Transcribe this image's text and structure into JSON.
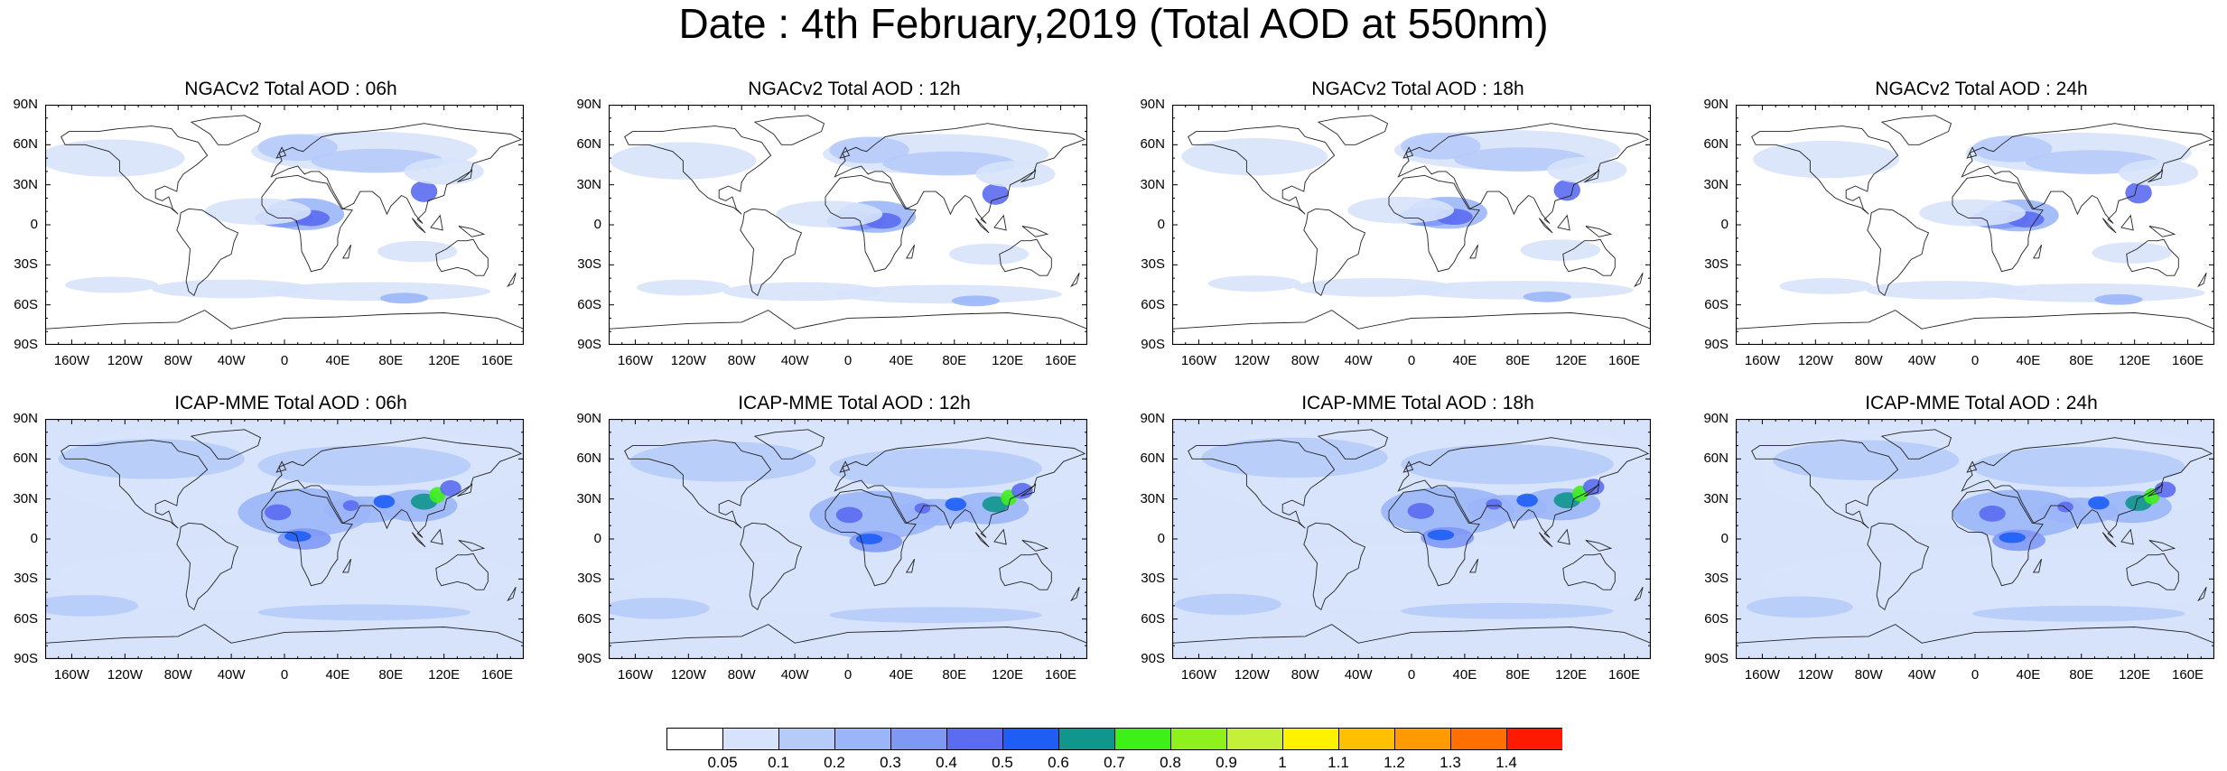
{
  "title": "Date : 4th February,2019 (Total AOD at 550nm)",
  "panels": [
    {
      "id": "ngac-06",
      "model": "NGACv2",
      "label": "NGACv2 Total AOD : 06h",
      "row": 0,
      "col": 0,
      "lead": "06h"
    },
    {
      "id": "ngac-12",
      "model": "NGACv2",
      "label": "NGACv2 Total AOD : 12h",
      "row": 0,
      "col": 1,
      "lead": "12h"
    },
    {
      "id": "ngac-18",
      "model": "NGACv2",
      "label": "NGACv2 Total AOD : 18h",
      "row": 0,
      "col": 2,
      "lead": "18h"
    },
    {
      "id": "ngac-24",
      "model": "NGACv2",
      "label": "NGACv2 Total AOD : 24h",
      "row": 0,
      "col": 3,
      "lead": "24h"
    },
    {
      "id": "icap-06",
      "model": "ICAP-MME",
      "label": "ICAP-MME Total AOD : 06h",
      "row": 1,
      "col": 0,
      "lead": "06h"
    },
    {
      "id": "icap-12",
      "model": "ICAP-MME",
      "label": "ICAP-MME Total AOD : 12h",
      "row": 1,
      "col": 1,
      "lead": "12h"
    },
    {
      "id": "icap-18",
      "model": "ICAP-MME",
      "label": "ICAP-MME Total AOD : 18h",
      "row": 1,
      "col": 2,
      "lead": "18h"
    },
    {
      "id": "icap-24",
      "model": "ICAP-MME",
      "label": "ICAP-MME Total AOD : 24h",
      "row": 1,
      "col": 3,
      "lead": "24h"
    }
  ],
  "lat_labels": [
    "90N",
    "60N",
    "30N",
    "0",
    "30S",
    "60S",
    "90S"
  ],
  "lon_labels": [
    "160W",
    "120W",
    "80W",
    "40W",
    "0",
    "40E",
    "80E",
    "120E",
    "160E"
  ],
  "lat_values": [
    90,
    60,
    30,
    0,
    -30,
    -60,
    -90
  ],
  "lon_values": [
    -160,
    -120,
    -80,
    -40,
    0,
    40,
    80,
    120,
    160
  ],
  "colorbar": {
    "labels": [
      "0.05",
      "0.1",
      "0.2",
      "0.3",
      "0.4",
      "0.5",
      "0.6",
      "0.7",
      "0.8",
      "0.9",
      "1",
      "1.1",
      "1.2",
      "1.3",
      "1.4"
    ],
    "colors": [
      "#ffffff",
      "#d7e3fb",
      "#b7cbf9",
      "#9bb6f8",
      "#7f98f4",
      "#5b6cf0",
      "#1e5ef5",
      "#10968c",
      "#3ef01a",
      "#8ef01c",
      "#c4f03a",
      "#fff200",
      "#ffc000",
      "#ff9a00",
      "#ff7000",
      "#ff1a00"
    ]
  },
  "chart_data": {
    "type": "heatmap",
    "variable": "Total AOD at 550nm",
    "date": "4th February,2019",
    "models": [
      "NGACv2",
      "ICAP-MME"
    ],
    "lead_times": [
      "06h",
      "12h",
      "18h",
      "24h"
    ],
    "xlim": [
      -180,
      180
    ],
    "ylim": [
      -90,
      90
    ],
    "levels": [
      0.05,
      0.1,
      0.2,
      0.3,
      0.4,
      0.5,
      0.6,
      0.7,
      0.8,
      0.9,
      1,
      1.1,
      1.2,
      1.3,
      1.4
    ]
  }
}
